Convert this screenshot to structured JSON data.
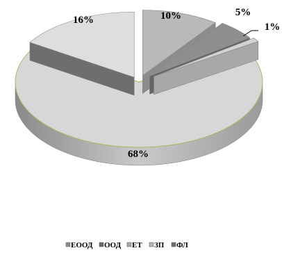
{
  "chart_data": {
    "type": "pie",
    "style": "3d-exploded",
    "title": "",
    "categories": [
      "ЕООД",
      "ООД",
      "ЕТ",
      "ЗП",
      "ФЛ"
    ],
    "values": [
      10,
      5,
      1,
      68,
      16
    ],
    "labels": [
      "10%",
      "5%",
      "1%",
      "68%",
      "16%"
    ],
    "colors": [
      "#b9b9b9",
      "#8f8f8f",
      "#d3d3d3",
      "#d7d7d7",
      "#dedede"
    ],
    "side_colors": [
      "#8c8c8c",
      "#666666",
      "#a8a8a8",
      "#b3b3b3",
      "#6e6e6e"
    ],
    "legend_position": "bottom"
  }
}
